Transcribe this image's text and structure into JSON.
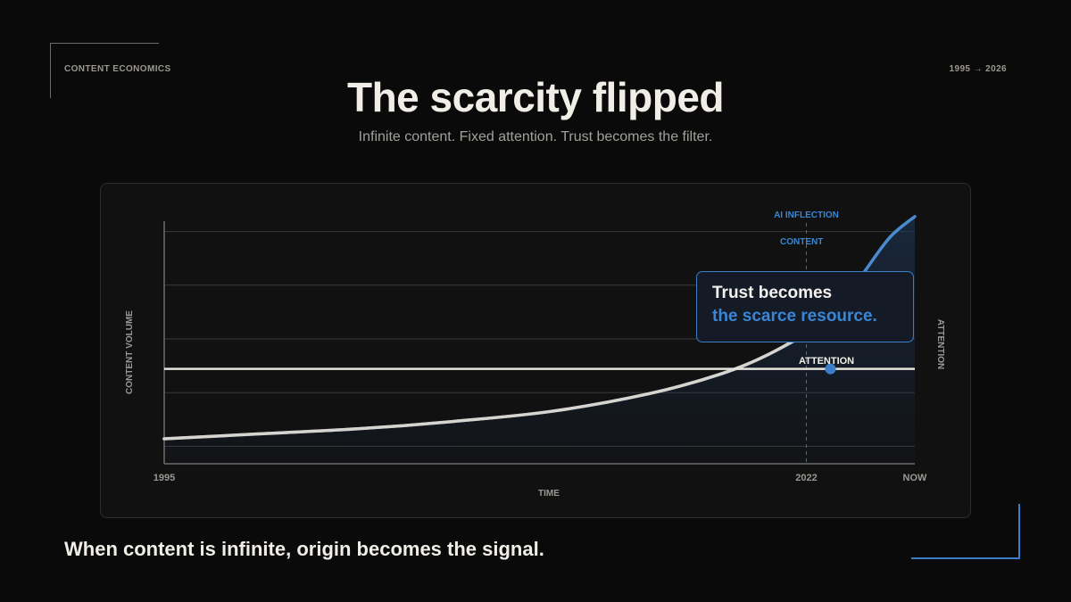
{
  "header": {
    "eyebrow_left": "CONTENT ECONOMICS",
    "eyebrow_right": "1995 → 2026",
    "title": "The scarcity flipped",
    "subtitle": "Infinite content. Fixed attention. Trust becomes the filter."
  },
  "chart_data": {
    "type": "line",
    "xlabel": "TIME",
    "ylabel": "CONTENT VOLUME",
    "ylabel_right": "ATTENTION",
    "x_ticks": [
      "1995",
      "2022",
      "NOW"
    ],
    "grid": true,
    "annotation": {
      "label": "AI INFLECTION",
      "x": 2022
    },
    "series": [
      {
        "name": "CONTENT",
        "x": [
          1995,
          1999,
          2003,
          2007,
          2011,
          2015,
          2018,
          2020,
          2022,
          2023,
          2024,
          2025,
          2026
        ],
        "y": [
          0.1,
          0.12,
          0.14,
          0.17,
          0.21,
          0.28,
          0.36,
          0.44,
          0.55,
          0.64,
          0.78,
          0.91,
          0.99
        ]
      },
      {
        "name": "ATTENTION",
        "x": [
          1995,
          2026
        ],
        "y": [
          0.38,
          0.38
        ]
      }
    ],
    "callout": {
      "line1": "Trust becomes",
      "line2": "the scarce resource."
    }
  },
  "footer": {
    "tagline": "When content is infinite, origin becomes the signal."
  },
  "colors": {
    "background": "#0a0a0a",
    "accent": "#3a7dc8",
    "text": "#f1eee7",
    "muted": "#9b9892"
  }
}
